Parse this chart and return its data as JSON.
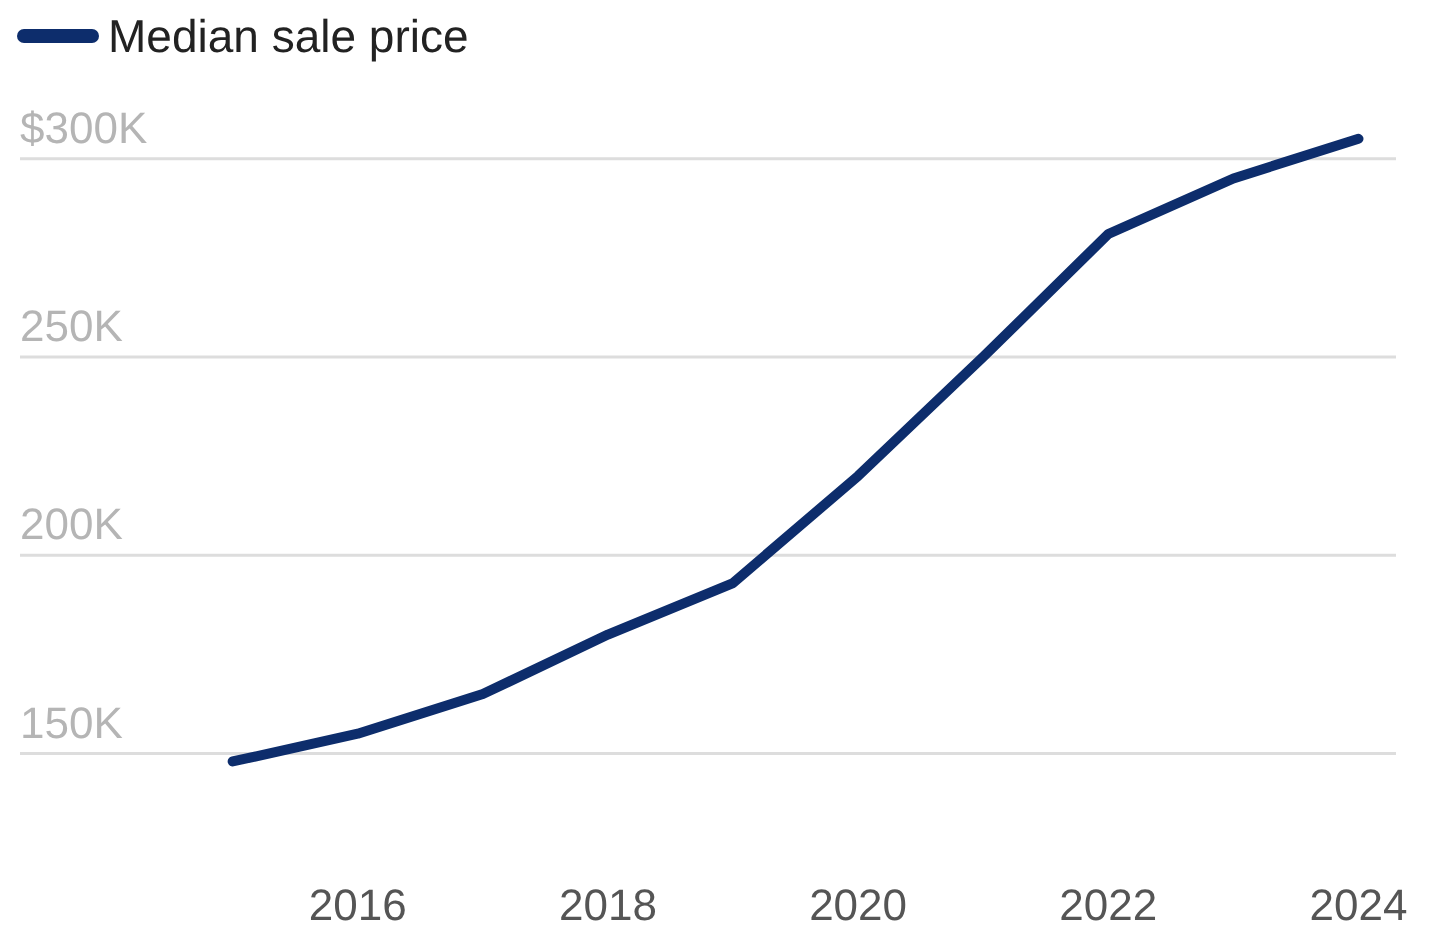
{
  "chart_data": {
    "type": "line",
    "x": [
      2015,
      2016,
      2017,
      2018,
      2019,
      2020,
      2021,
      2022,
      2023,
      2024
    ],
    "series": [
      {
        "name": "Median sale price",
        "color": "#0d2d6c",
        "values": [
          148000,
          155000,
          165000,
          180000,
          193000,
          220000,
          250000,
          281000,
          295000,
          305000
        ]
      }
    ],
    "xlim": [
      2013.3,
      2024.3
    ],
    "xticks": [
      2016,
      2018,
      2020,
      2022,
      2024
    ],
    "ylim": [
      104000,
      340000
    ],
    "yticks": [
      {
        "value": 150000,
        "label": "150K"
      },
      {
        "value": 200000,
        "label": "200K"
      },
      {
        "value": 250000,
        "label": "250K"
      },
      {
        "value": 300000,
        "label": "$300K"
      }
    ],
    "grid": "y",
    "legend": "top left",
    "marker": "none",
    "line_style": "solid"
  }
}
